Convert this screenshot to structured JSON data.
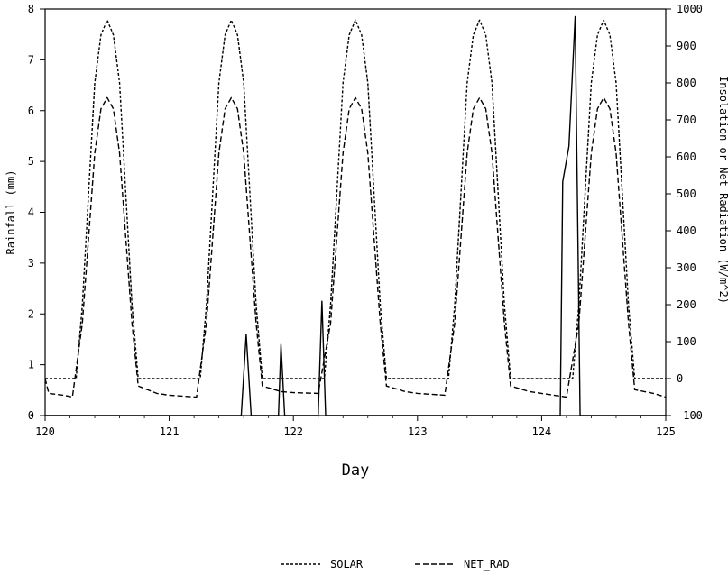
{
  "chart_data": {
    "type": "line",
    "xlabel": "Day",
    "ylabel_left": "Rainfall (mm)",
    "ylabel_right": "Insolation or Net Radiation (W/m^2)",
    "xlim": [
      120,
      125
    ],
    "ylim_left": [
      0,
      8
    ],
    "ylim_right": [
      -100,
      1000
    ],
    "x_ticks": [
      "120",
      "121",
      "122",
      "123",
      "124",
      "125"
    ],
    "y_ticks_left": [
      "0",
      "1",
      "2",
      "3",
      "4",
      "5",
      "6",
      "7",
      "8"
    ],
    "y_ticks_right": [
      "-100",
      "0",
      "100",
      "200",
      "300",
      "400",
      "500",
      "600",
      "700",
      "800",
      "900",
      "1000"
    ],
    "grid": false,
    "legend_position": "bottom-center",
    "series": [
      {
        "name": "SOLAR",
        "axis": "right",
        "style": "dotted",
        "points": [
          [
            120.0,
            0
          ],
          [
            120.25,
            0
          ],
          [
            120.3,
            200
          ],
          [
            120.35,
            500
          ],
          [
            120.4,
            800
          ],
          [
            120.45,
            930
          ],
          [
            120.5,
            970
          ],
          [
            120.55,
            930
          ],
          [
            120.6,
            800
          ],
          [
            120.65,
            500
          ],
          [
            120.7,
            200
          ],
          [
            120.75,
            0
          ],
          [
            121.25,
            0
          ],
          [
            121.3,
            200
          ],
          [
            121.35,
            500
          ],
          [
            121.4,
            800
          ],
          [
            121.45,
            930
          ],
          [
            121.5,
            970
          ],
          [
            121.55,
            930
          ],
          [
            121.6,
            800
          ],
          [
            121.65,
            500
          ],
          [
            121.7,
            200
          ],
          [
            121.75,
            0
          ],
          [
            122.25,
            0
          ],
          [
            122.3,
            200
          ],
          [
            122.35,
            500
          ],
          [
            122.4,
            800
          ],
          [
            122.45,
            930
          ],
          [
            122.5,
            970
          ],
          [
            122.55,
            930
          ],
          [
            122.6,
            800
          ],
          [
            122.65,
            500
          ],
          [
            122.7,
            200
          ],
          [
            122.75,
            0
          ],
          [
            123.25,
            0
          ],
          [
            123.3,
            200
          ],
          [
            123.35,
            500
          ],
          [
            123.4,
            800
          ],
          [
            123.45,
            930
          ],
          [
            123.5,
            970
          ],
          [
            123.55,
            930
          ],
          [
            123.6,
            800
          ],
          [
            123.65,
            500
          ],
          [
            123.7,
            200
          ],
          [
            123.75,
            0
          ],
          [
            124.25,
            0
          ],
          [
            124.3,
            200
          ],
          [
            124.35,
            500
          ],
          [
            124.4,
            800
          ],
          [
            124.45,
            930
          ],
          [
            124.5,
            970
          ],
          [
            124.55,
            930
          ],
          [
            124.6,
            800
          ],
          [
            124.65,
            500
          ],
          [
            124.7,
            200
          ],
          [
            124.75,
            0
          ],
          [
            125.0,
            0
          ]
        ]
      },
      {
        "name": "NET_RAD",
        "axis": "right",
        "style": "dashed",
        "points": [
          [
            120.0,
            0
          ],
          [
            120.03,
            -40
          ],
          [
            120.15,
            -45
          ],
          [
            120.22,
            -50
          ],
          [
            120.3,
            150
          ],
          [
            120.35,
            380
          ],
          [
            120.4,
            610
          ],
          [
            120.45,
            730
          ],
          [
            120.5,
            760
          ],
          [
            120.55,
            730
          ],
          [
            120.6,
            610
          ],
          [
            120.65,
            380
          ],
          [
            120.7,
            150
          ],
          [
            120.75,
            -20
          ],
          [
            120.9,
            -40
          ],
          [
            121.0,
            -45
          ],
          [
            121.22,
            -50
          ],
          [
            121.3,
            150
          ],
          [
            121.35,
            380
          ],
          [
            121.4,
            610
          ],
          [
            121.45,
            730
          ],
          [
            121.5,
            760
          ],
          [
            121.55,
            730
          ],
          [
            121.6,
            610
          ],
          [
            121.65,
            380
          ],
          [
            121.7,
            150
          ],
          [
            121.75,
            -20
          ],
          [
            121.9,
            -35
          ],
          [
            122.0,
            -38
          ],
          [
            122.2,
            -40
          ],
          [
            122.3,
            150
          ],
          [
            122.35,
            380
          ],
          [
            122.4,
            610
          ],
          [
            122.45,
            730
          ],
          [
            122.5,
            760
          ],
          [
            122.55,
            730
          ],
          [
            122.6,
            610
          ],
          [
            122.65,
            380
          ],
          [
            122.7,
            150
          ],
          [
            122.75,
            -20
          ],
          [
            122.9,
            -35
          ],
          [
            123.0,
            -40
          ],
          [
            123.22,
            -45
          ],
          [
            123.3,
            150
          ],
          [
            123.35,
            380
          ],
          [
            123.4,
            610
          ],
          [
            123.45,
            730
          ],
          [
            123.5,
            760
          ],
          [
            123.55,
            730
          ],
          [
            123.6,
            610
          ],
          [
            123.65,
            380
          ],
          [
            123.7,
            150
          ],
          [
            123.75,
            -20
          ],
          [
            123.9,
            -35
          ],
          [
            124.0,
            -40
          ],
          [
            124.2,
            -50
          ],
          [
            124.3,
            150
          ],
          [
            124.35,
            380
          ],
          [
            124.4,
            610
          ],
          [
            124.45,
            730
          ],
          [
            124.5,
            760
          ],
          [
            124.55,
            730
          ],
          [
            124.6,
            610
          ],
          [
            124.65,
            380
          ],
          [
            124.7,
            150
          ],
          [
            124.75,
            -30
          ],
          [
            124.9,
            -40
          ],
          [
            125.0,
            -50
          ]
        ]
      },
      {
        "name": "Rainfall",
        "axis": "left",
        "style": "solid",
        "points": [
          [
            120.0,
            0
          ],
          [
            121.58,
            0
          ],
          [
            121.62,
            1.6
          ],
          [
            121.66,
            0
          ],
          [
            121.88,
            0
          ],
          [
            121.9,
            1.4
          ],
          [
            121.93,
            0
          ],
          [
            122.2,
            0
          ],
          [
            122.23,
            2.25
          ],
          [
            122.26,
            0
          ],
          [
            124.15,
            0
          ],
          [
            124.17,
            4.6
          ],
          [
            124.22,
            5.3
          ],
          [
            124.27,
            7.85
          ],
          [
            124.31,
            0
          ],
          [
            125.0,
            0
          ]
        ]
      }
    ]
  }
}
